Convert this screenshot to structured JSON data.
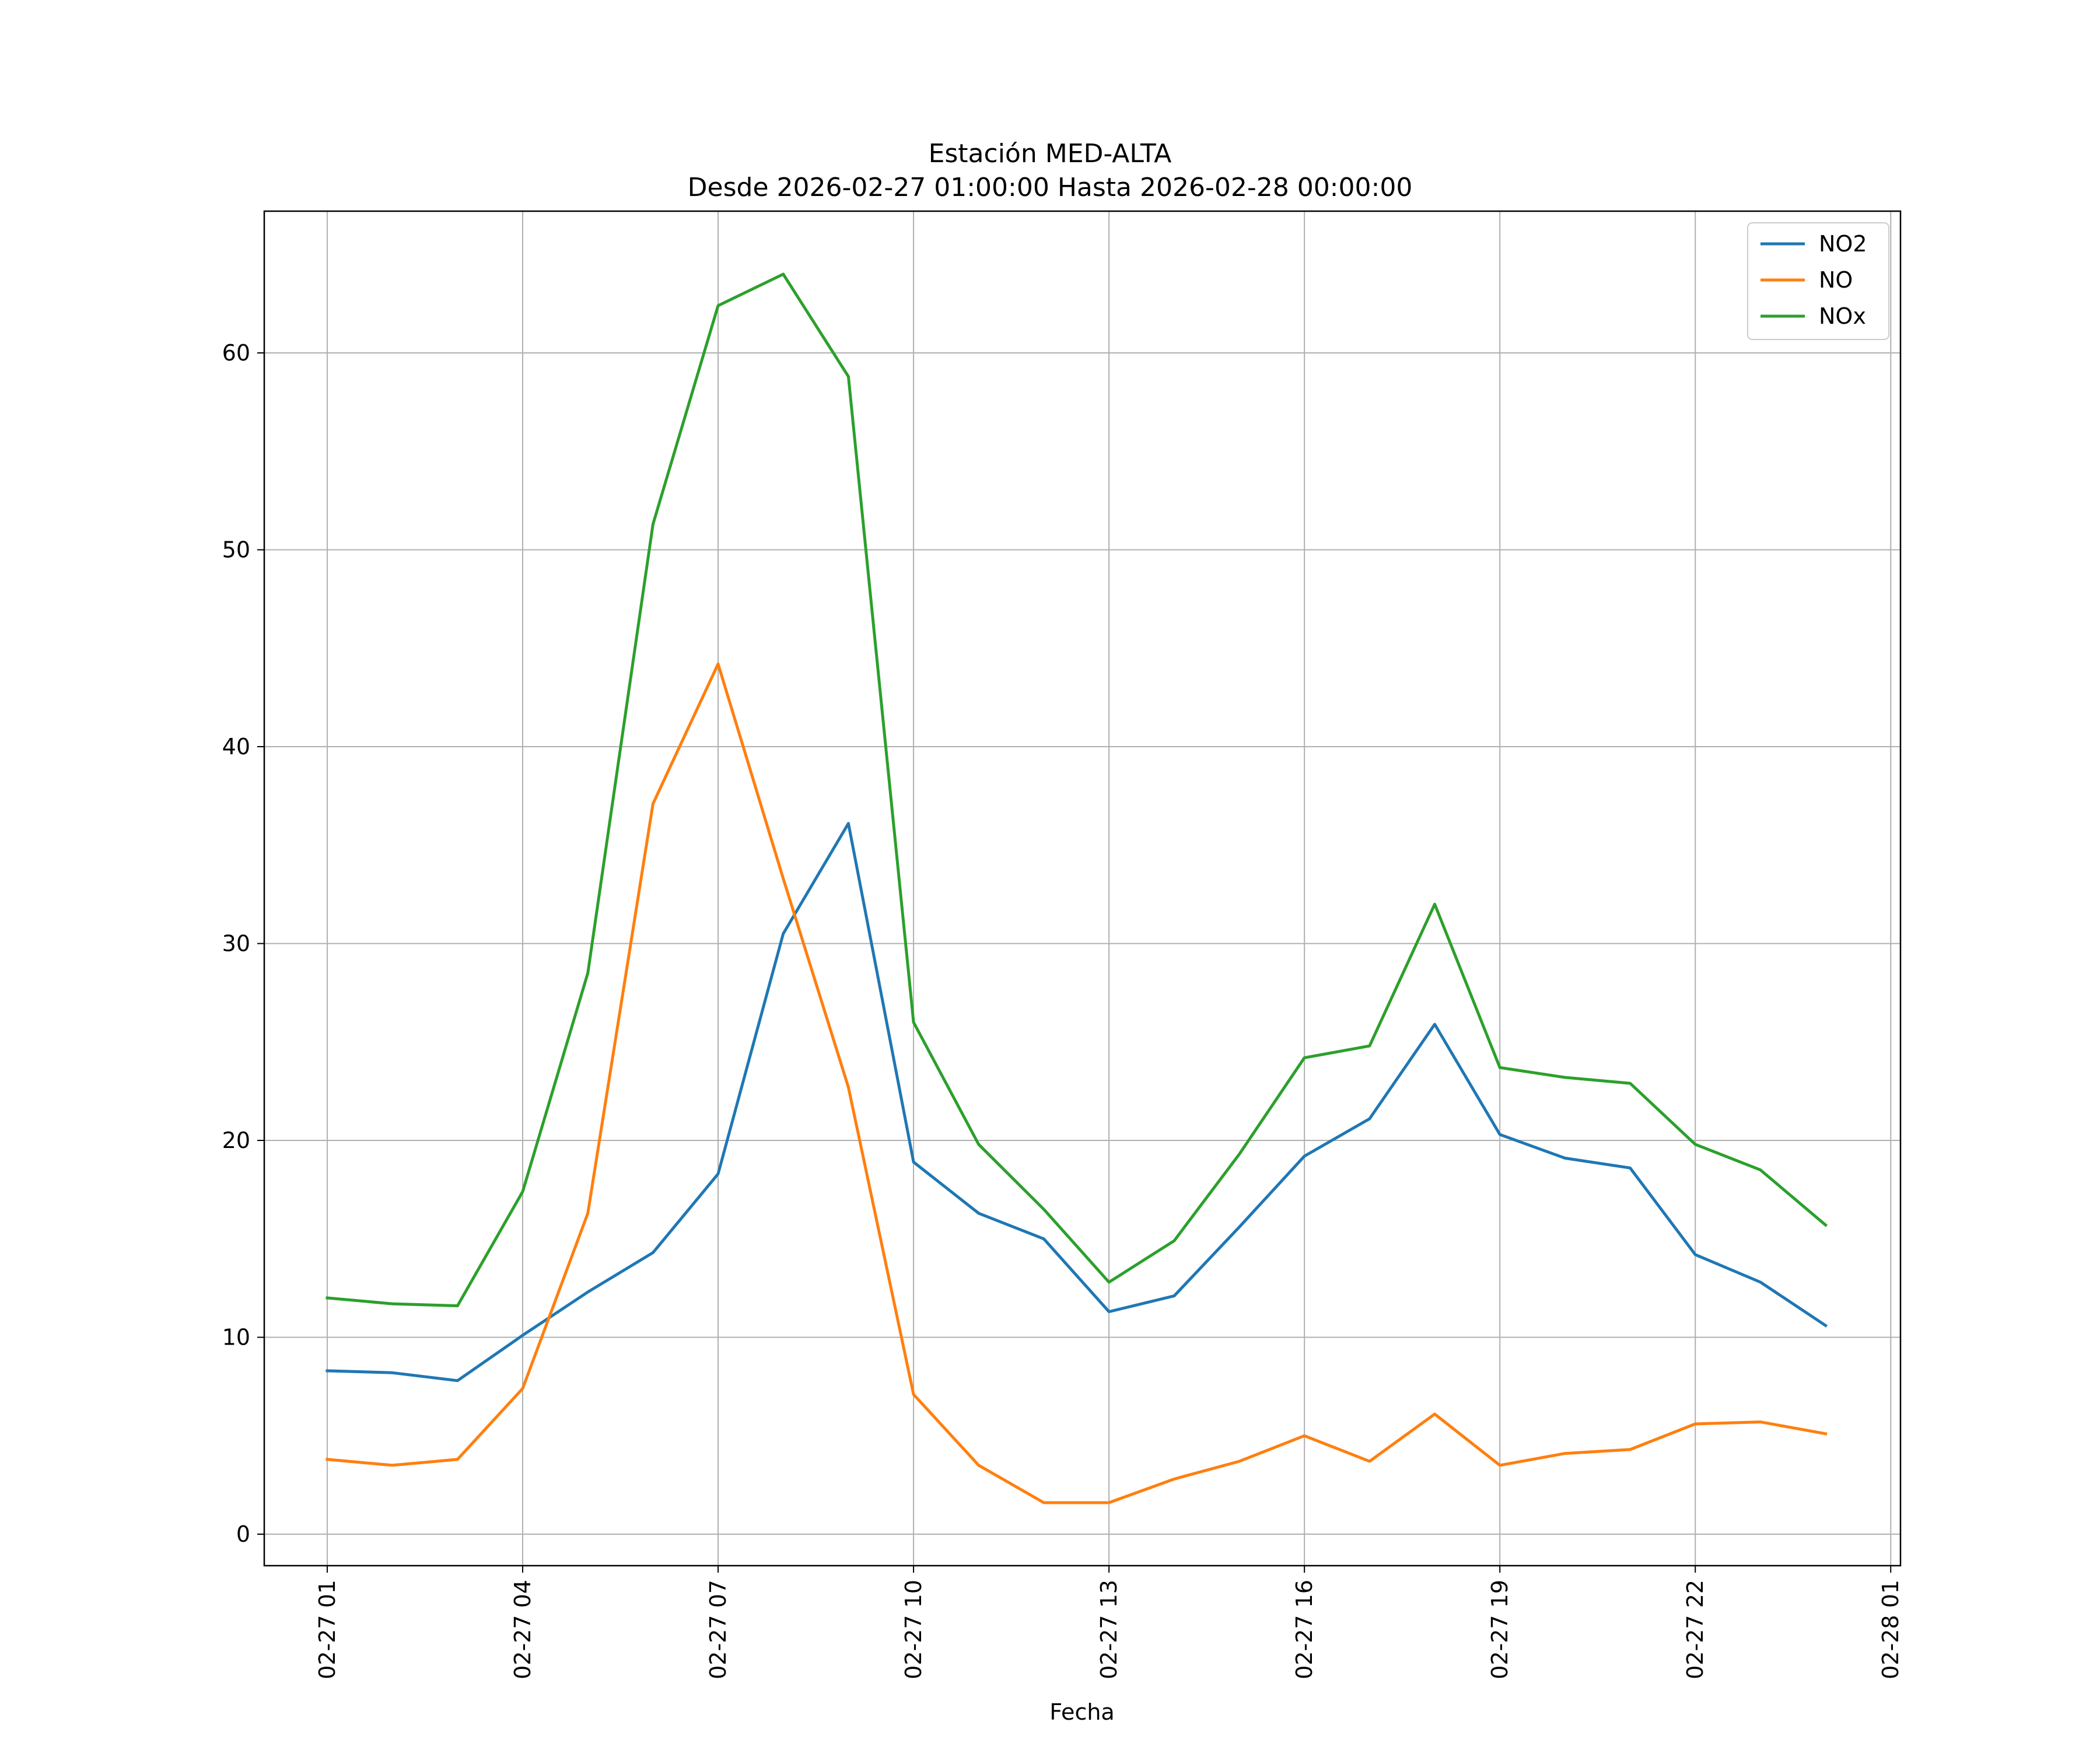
{
  "chart_data": {
    "type": "line",
    "title": "Estación MED-ALTA",
    "subtitle": "Desde 2026-02-27 01:00:00 Hasta 2026-02-28 00:00:00",
    "xlabel": "Fecha",
    "ylabel": "",
    "x": [
      "02-27 01",
      "02-27 02",
      "02-27 03",
      "02-27 04",
      "02-27 05",
      "02-27 06",
      "02-27 07",
      "02-27 08",
      "02-27 09",
      "02-27 10",
      "02-27 11",
      "02-27 12",
      "02-27 13",
      "02-27 14",
      "02-27 15",
      "02-27 16",
      "02-27 17",
      "02-27 18",
      "02-27 19",
      "02-27 20",
      "02-27 21",
      "02-27 22",
      "02-27 23",
      "02-28 00"
    ],
    "xticks": [
      "02-27 01",
      "02-27 04",
      "02-27 07",
      "02-27 10",
      "02-27 13",
      "02-27 16",
      "02-27 19",
      "02-27 22",
      "02-28 01"
    ],
    "yticks": [
      0,
      10,
      20,
      30,
      40,
      50,
      60
    ],
    "xlim": [
      "02-27 00:02",
      "02-28 01:09"
    ],
    "ylim": [
      -1.6,
      67.2
    ],
    "grid": true,
    "legend_position": "top-right",
    "series": [
      {
        "name": "NO2",
        "color": "#1f77b4",
        "values": [
          8.3,
          8.2,
          7.8,
          10.1,
          12.3,
          14.3,
          18.3,
          30.5,
          36.1,
          18.9,
          16.3,
          15.0,
          11.3,
          12.1,
          15.6,
          19.2,
          21.1,
          25.9,
          20.3,
          19.1,
          18.6,
          14.2,
          12.8,
          10.6
        ]
      },
      {
        "name": "NO",
        "color": "#ff7f0e",
        "values": [
          3.8,
          3.5,
          3.8,
          7.4,
          16.3,
          37.1,
          44.2,
          33.3,
          22.7,
          7.1,
          3.5,
          1.6,
          1.6,
          2.8,
          3.7,
          5.0,
          3.7,
          6.1,
          3.5,
          4.1,
          4.3,
          5.6,
          5.7,
          5.1
        ]
      },
      {
        "name": "NOx",
        "color": "#2ca02c",
        "values": [
          12.0,
          11.7,
          11.6,
          17.4,
          28.5,
          51.3,
          62.4,
          64.0,
          58.8,
          26.0,
          19.8,
          16.5,
          12.8,
          14.9,
          19.3,
          24.2,
          24.8,
          32.0,
          23.7,
          23.2,
          22.9,
          19.8,
          18.5,
          15.7
        ]
      }
    ]
  }
}
